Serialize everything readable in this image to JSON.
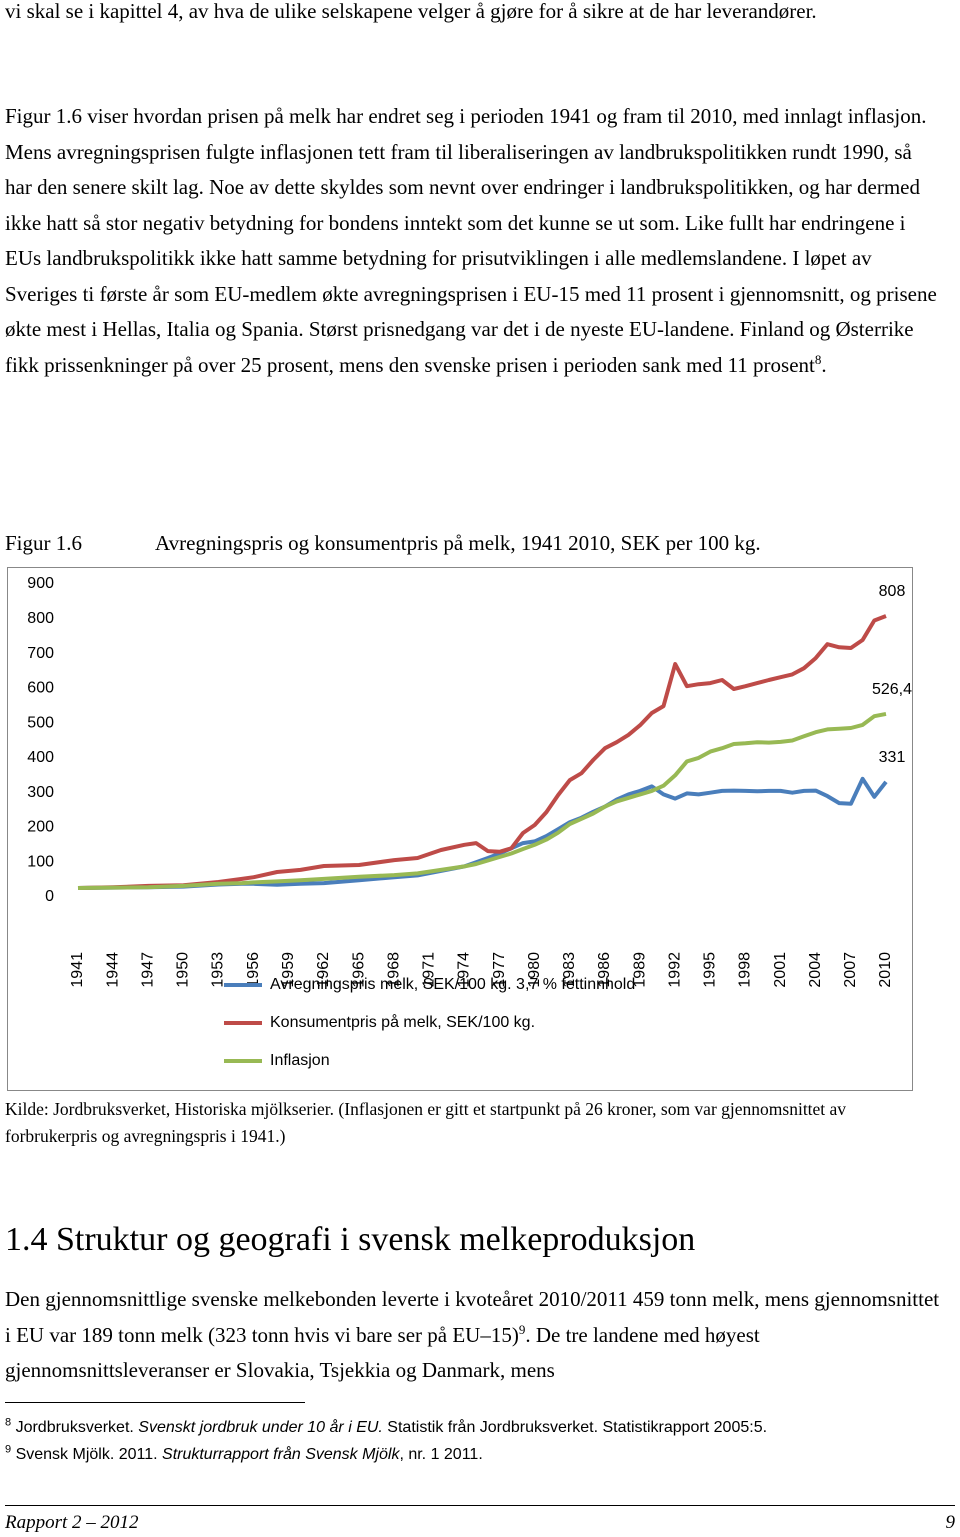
{
  "intro": "vi skal se i kapittel 4, av hva de ulike selskapene velger å gjøre for å sikre at de har leverandører.",
  "paragraph_2": {
    "text": "Figur 1.6 viser hvordan prisen på melk har endret seg i perioden 1941 og fram til 2010, med innlagt inflasjon. Mens avregningsprisen fulgte inflasjonen tett fram til liberaliseringen av landbrukspolitikken rundt 1990, så har den senere skilt lag. Noe av dette skyldes som nevnt over endringer i landbrukspolitikken, og har dermed ikke hatt så stor negativ betydning for bondens inntekt som det kunne se ut som. Like fullt har endringene i EUs landbrukspolitikk ikke hatt samme betydning for prisutviklingen i alle medlemslandene. I løpet av Sveriges ti første år som EU-medlem økte avregningsprisen i EU-15 med 11 prosent i gjennomsnitt, og prisene økte mest i Hellas, Italia og Spania. Størst prisnedgang var det i de nyeste EU-landene. Finland og Østerrike fikk prissenkninger på over 25 prosent, mens den svenske prisen i perioden sank med 11 prosent",
    "footnote_ref": "8",
    "end": "."
  },
  "figure": {
    "label": "Figur 1.6",
    "source": "Kilde: Jordbruksverket, Historiska mjölkserier. (Inflasjonen er gitt et startpunkt på 26 kroner, som var gjennomsnittet av forbrukerpris og avregningspris i 1941.)"
  },
  "chart_data": {
    "type": "line",
    "title": "Avregningspris og konsumentpris på melk, 1941 2010, SEK per 100 kg.",
    "x": [
      1941,
      1944,
      1947,
      1950,
      1953,
      1955,
      1956,
      1958,
      1960,
      1962,
      1965,
      1968,
      1970,
      1972,
      1974,
      1975,
      1976,
      1977,
      1978,
      1979,
      1980,
      1981,
      1982,
      1983,
      1984,
      1985,
      1986,
      1987,
      1988,
      1989,
      1990,
      1991,
      1992,
      1993,
      1994,
      1995,
      1996,
      1997,
      1998,
      1999,
      2000,
      2001,
      2002,
      2003,
      2004,
      2005,
      2006,
      2007,
      2008,
      2009,
      2010
    ],
    "xlim": [
      1941,
      2010
    ],
    "xticks": [
      1941,
      1944,
      1947,
      1950,
      1953,
      1956,
      1959,
      1962,
      1965,
      1968,
      1971,
      1974,
      1977,
      1980,
      1983,
      1986,
      1989,
      1992,
      1995,
      1998,
      2001,
      2004,
      2007,
      2010
    ],
    "ylim": [
      0,
      900
    ],
    "yticks": [
      0,
      100,
      200,
      300,
      400,
      500,
      600,
      700,
      800,
      900
    ],
    "grid": false,
    "legend": "bottom",
    "series": [
      {
        "name": "Avregningspris melk, SEK/100 kg. 3,7 % fettinnhold",
        "color": "#4a7ebb",
        "end_label": "331",
        "values": [
          26,
          27,
          28,
          30,
          36,
          38,
          38,
          35,
          38,
          40,
          48,
          57,
          62,
          75,
          88,
          100,
          112,
          125,
          140,
          155,
          160,
          175,
          195,
          215,
          228,
          245,
          260,
          280,
          295,
          305,
          318,
          295,
          283,
          298,
          295,
          300,
          305,
          306,
          305,
          304,
          305,
          305,
          300,
          305,
          306,
          290,
          270,
          268,
          340,
          288,
          331
        ]
      },
      {
        "name": "Konsumentpris på melk, SEK/100 kg.",
        "color": "#be4b48",
        "end_label": "808",
        "values": [
          26,
          28,
          32,
          34,
          43,
          52,
          57,
          72,
          78,
          89,
          92,
          106,
          112,
          135,
          150,
          155,
          132,
          130,
          140,
          184,
          207,
          244,
          293,
          336,
          356,
          394,
          428,
          445,
          466,
          494,
          529,
          549,
          670,
          606,
          612,
          615,
          624,
          598,
          606,
          615,
          624,
          632,
          640,
          658,
          687,
          727,
          718,
          716,
          739,
          795,
          808
        ]
      },
      {
        "name": "Inflasjon",
        "color": "#98b954",
        "end_label": "526,4",
        "values": [
          26,
          27,
          28,
          32,
          38,
          40,
          42,
          45,
          48,
          52,
          58,
          63,
          68,
          78,
          88,
          95,
          105,
          115,
          125,
          138,
          150,
          165,
          185,
          210,
          225,
          240,
          260,
          275,
          285,
          295,
          305,
          320,
          350,
          390,
          400,
          418,
          428,
          440,
          442,
          445,
          444,
          446,
          450,
          462,
          474,
          482,
          484,
          486,
          495,
          520,
          526.4
        ]
      }
    ]
  },
  "section": {
    "heading": "1.4 Struktur og geografi i svensk melkeproduksjon",
    "text": "Den gjennomsnittlige svenske melkebonden leverte i kvoteåret 2010/2011 459 tonn melk, mens gjennomsnittet i EU var 189 tonn melk (323 tonn hvis vi bare ser på EU–15)",
    "footnote_ref": "9",
    "end": ". De tre landene med høyest gjennomsnittsleveranser er Slovakia, Tsjekkia og Danmark, mens"
  },
  "footnotes": [
    {
      "number": "8",
      "plain": "Jordbruksverket. ",
      "italic": "Svenskt jordbruk under 10 år i EU.",
      "rest": " Statistik från Jordbruksverket. Statistikrapport 2005:5."
    },
    {
      "number": "9",
      "plain": "Svensk Mjölk. 2011. ",
      "italic": "Strukturrapport från Svensk Mjölk",
      "rest": ", nr. 1 2011."
    }
  ],
  "footer": {
    "left": "Rapport 2 – 2012",
    "page": "9"
  }
}
